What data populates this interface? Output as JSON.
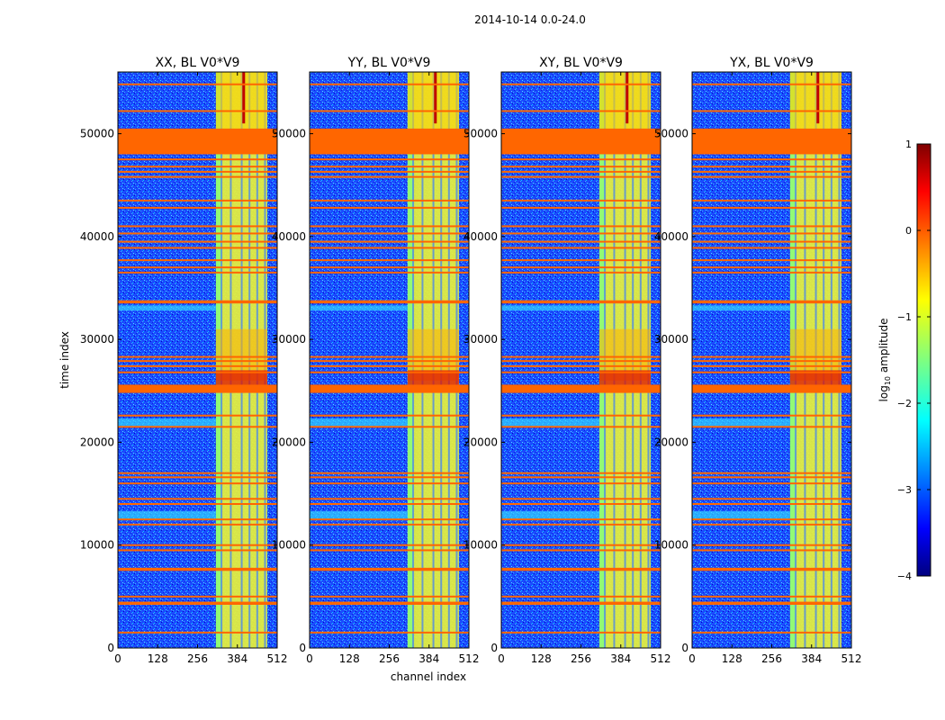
{
  "figure": {
    "suptitle": "2014-10-14 0.0-24.0",
    "xlabel": "channel index",
    "ylabel": "time index",
    "colorbar_label": "log10 amplitude",
    "colorbar_label_main": "log",
    "colorbar_label_sub": "10",
    "colorbar_label_rest": " amplitude"
  },
  "chart_data": [
    {
      "type": "heatmap",
      "title": "XX, BL V0*V9",
      "xlabel": "channel index",
      "ylabel": "time index",
      "xlim": [
        0,
        512
      ],
      "ylim": [
        0,
        56000
      ],
      "xticks": [
        0,
        128,
        256,
        384,
        512
      ],
      "yticks": [
        0,
        10000,
        20000,
        30000,
        40000,
        50000
      ],
      "colorscale": "jet",
      "value_range": [
        -4,
        1
      ]
    },
    {
      "type": "heatmap",
      "title": "YY, BL V0*V9",
      "xlim": [
        0,
        512
      ],
      "ylim": [
        0,
        56000
      ],
      "xticks": [
        0,
        128,
        256,
        384,
        512
      ],
      "yticks": [
        0,
        10000,
        20000,
        30000,
        40000,
        50000
      ],
      "colorscale": "jet",
      "value_range": [
        -4,
        1
      ]
    },
    {
      "type": "heatmap",
      "title": "XY, BL V0*V9",
      "xlim": [
        0,
        512
      ],
      "ylim": [
        0,
        56000
      ],
      "xticks": [
        0,
        128,
        256,
        384,
        512
      ],
      "yticks": [
        0,
        10000,
        20000,
        30000,
        40000,
        50000
      ],
      "colorscale": "jet",
      "value_range": [
        -4,
        1
      ]
    },
    {
      "type": "heatmap",
      "title": "YX, BL V0*V9",
      "xlim": [
        0,
        512
      ],
      "ylim": [
        0,
        56000
      ],
      "xticks": [
        0,
        128,
        256,
        384,
        512
      ],
      "yticks": [
        0,
        10000,
        20000,
        30000,
        40000,
        50000
      ],
      "colorscale": "jet",
      "value_range": [
        -4,
        1
      ]
    }
  ],
  "colorbar": {
    "ticks": [
      1,
      0,
      -1,
      -2,
      -3,
      -4
    ],
    "tick_labels": [
      "1",
      "0",
      "−1",
      "−2",
      "−3",
      "−4"
    ],
    "range": [
      -4,
      1
    ]
  },
  "structure": {
    "flagged_time_bands": [
      [
        48000,
        50500
      ],
      [
        24800,
        25600
      ],
      [
        33500,
        33800
      ],
      [
        4200,
        4500
      ],
      [
        7500,
        7800
      ]
    ],
    "flagged_time_lines": [
      54800,
      52200,
      47500,
      46800,
      46300,
      45800,
      43500,
      42800,
      41000,
      40300,
      39500,
      38900,
      37700,
      37000,
      36500,
      28300,
      27900,
      27400,
      26800,
      22600,
      21500,
      17000,
      16600,
      16000,
      14500,
      14000,
      12500,
      12000,
      10000,
      9500,
      5000,
      1500
    ],
    "bright_channel_band": [
      315,
      480
    ],
    "bright_channel_lines": [
      330,
      360,
      395,
      420,
      445,
      470
    ]
  },
  "colors": {
    "flag": "#ff6600",
    "background": "#ffffff",
    "axis": "#000000"
  }
}
